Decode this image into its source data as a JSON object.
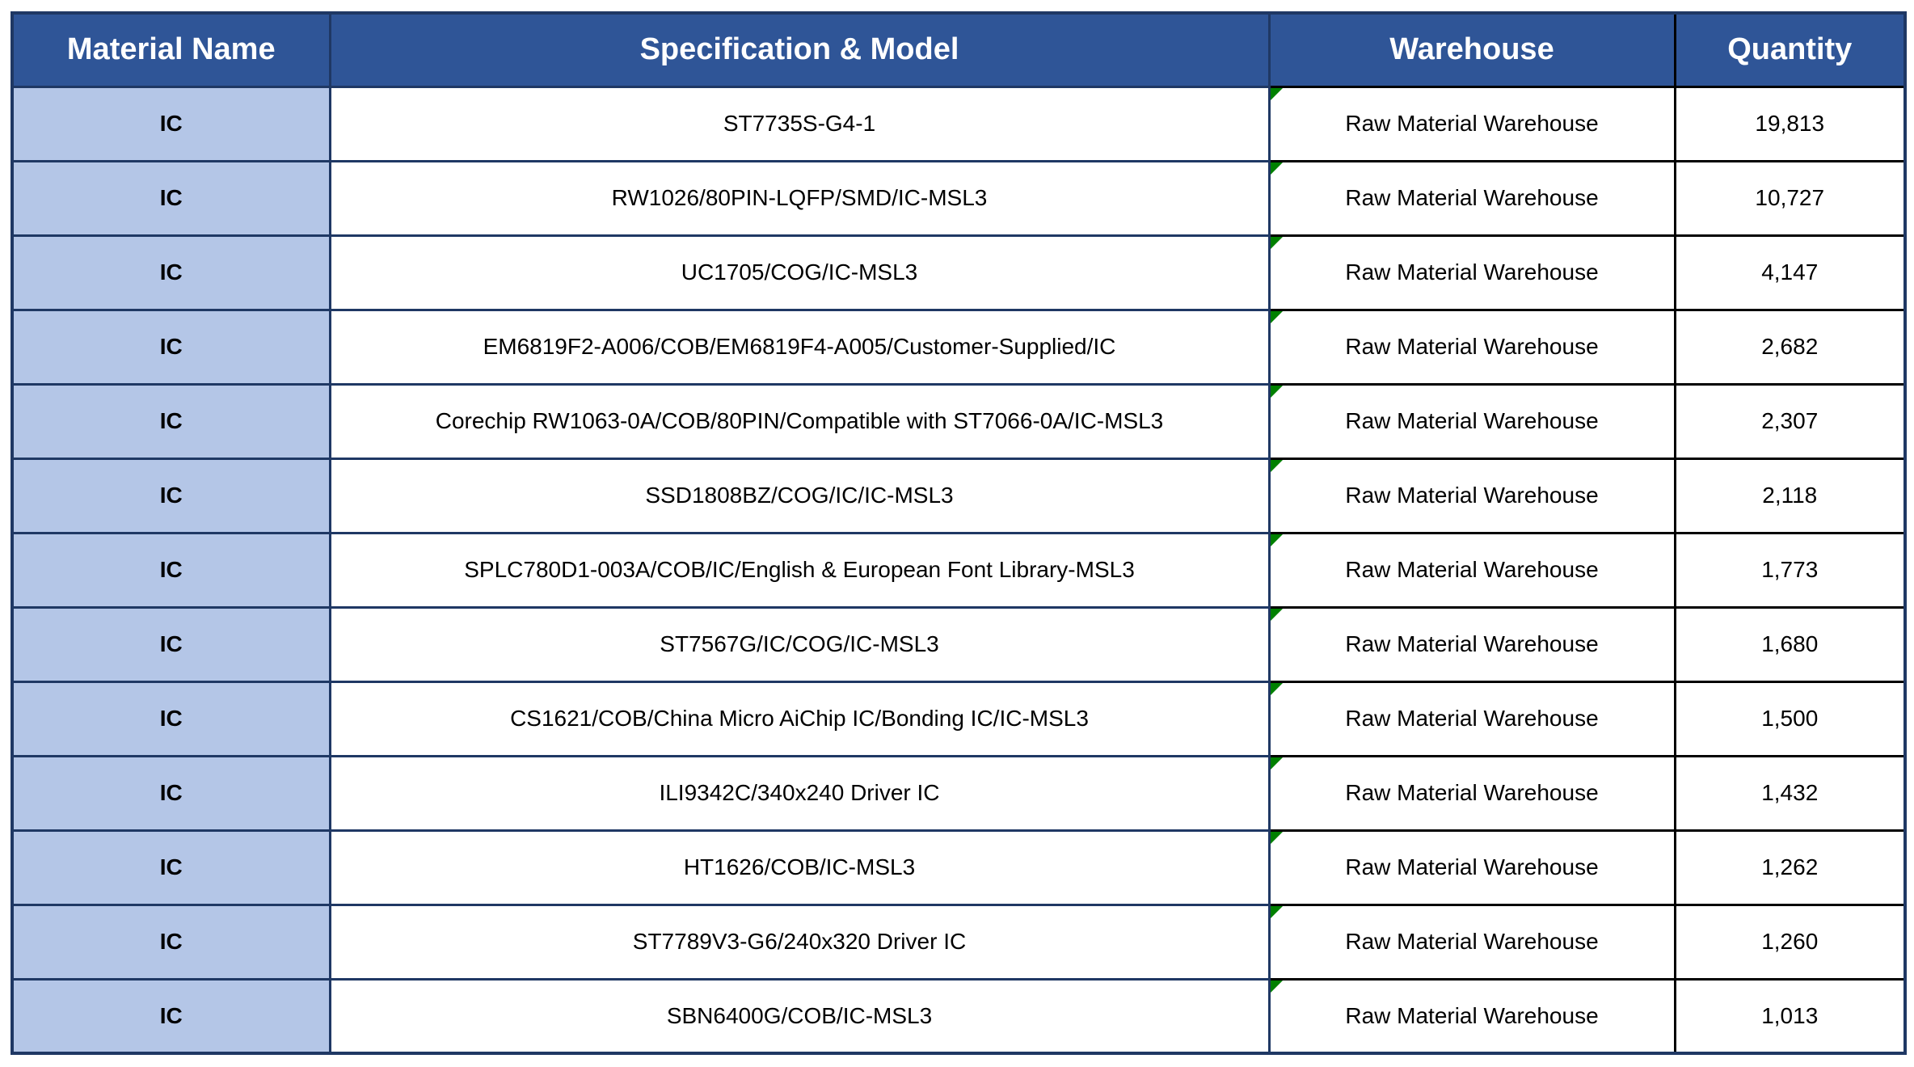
{
  "table": {
    "columns": [
      {
        "key": "material",
        "label": "Material Name"
      },
      {
        "key": "spec",
        "label": "Specification &amp; Model",
        "label_text": "Specification & Model"
      },
      {
        "key": "warehouse",
        "label_text": "Warehouse"
      },
      {
        "key": "quantity",
        "label_text": "Quantity"
      }
    ],
    "header": {
      "material": "Material Name",
      "spec": "Specification & Model",
      "warehouse": "Warehouse",
      "quantity": "Quantity"
    },
    "rows": [
      {
        "material": "IC",
        "spec": "ST7735S-G4-1",
        "warehouse": "Raw Material Warehouse",
        "quantity": "19,813"
      },
      {
        "material": "IC",
        "spec": "RW1026/80PIN-LQFP/SMD/IC-MSL3",
        "warehouse": "Raw Material Warehouse",
        "quantity": "10,727"
      },
      {
        "material": "IC",
        "spec": "UC1705/COG/IC-MSL3",
        "warehouse": "Raw Material Warehouse",
        "quantity": "4,147"
      },
      {
        "material": "IC",
        "spec": "EM6819F2-A006/COB/EM6819F4-A005/Customer-Supplied/IC",
        "warehouse": "Raw Material Warehouse",
        "quantity": "2,682"
      },
      {
        "material": "IC",
        "spec": "Corechip RW1063-0A/COB/80PIN/Compatible with ST7066-0A/IC-MSL3",
        "warehouse": "Raw Material Warehouse",
        "quantity": "2,307"
      },
      {
        "material": "IC",
        "spec": "SSD1808BZ/COG/IC/IC-MSL3",
        "warehouse": "Raw Material Warehouse",
        "quantity": "2,118"
      },
      {
        "material": "IC",
        "spec": "SPLC780D1-003A/COB/IC/English & European Font Library-MSL3",
        "warehouse": "Raw Material Warehouse",
        "quantity": "1,773"
      },
      {
        "material": "IC",
        "spec": "ST7567G/IC/COG/IC-MSL3",
        "warehouse": "Raw Material Warehouse",
        "quantity": "1,680"
      },
      {
        "material": "IC",
        "spec": "CS1621/COB/China Micro AiChip IC/Bonding IC/IC-MSL3",
        "warehouse": "Raw Material Warehouse",
        "quantity": "1,500"
      },
      {
        "material": "IC",
        "spec": "ILI9342C/340x240 Driver IC",
        "warehouse": "Raw Material Warehouse",
        "quantity": "1,432"
      },
      {
        "material": "IC",
        "spec": "HT1626/COB/IC-MSL3",
        "warehouse": "Raw Material Warehouse",
        "quantity": "1,262"
      },
      {
        "material": "IC",
        "spec": "ST7789V3-G6/240x320 Driver IC",
        "warehouse": "Raw Material Warehouse",
        "quantity": "1,260"
      },
      {
        "material": "IC",
        "spec": "SBN6400G/COB/IC-MSL3",
        "warehouse": "Raw Material Warehouse",
        "quantity": "1,013"
      }
    ],
    "icons": {
      "warehouse_cell_corner": "error-check-flag-icon"
    },
    "colors": {
      "header_bg": "#2F5597",
      "header_text": "#FFFFFF",
      "material_cell_bg": "#B4C6E7",
      "border_navy": "#1F3864",
      "border_black": "#000000",
      "indicator_green": "#008000",
      "cell_text": "#000000",
      "page_bg": "#FFFFFF"
    }
  }
}
